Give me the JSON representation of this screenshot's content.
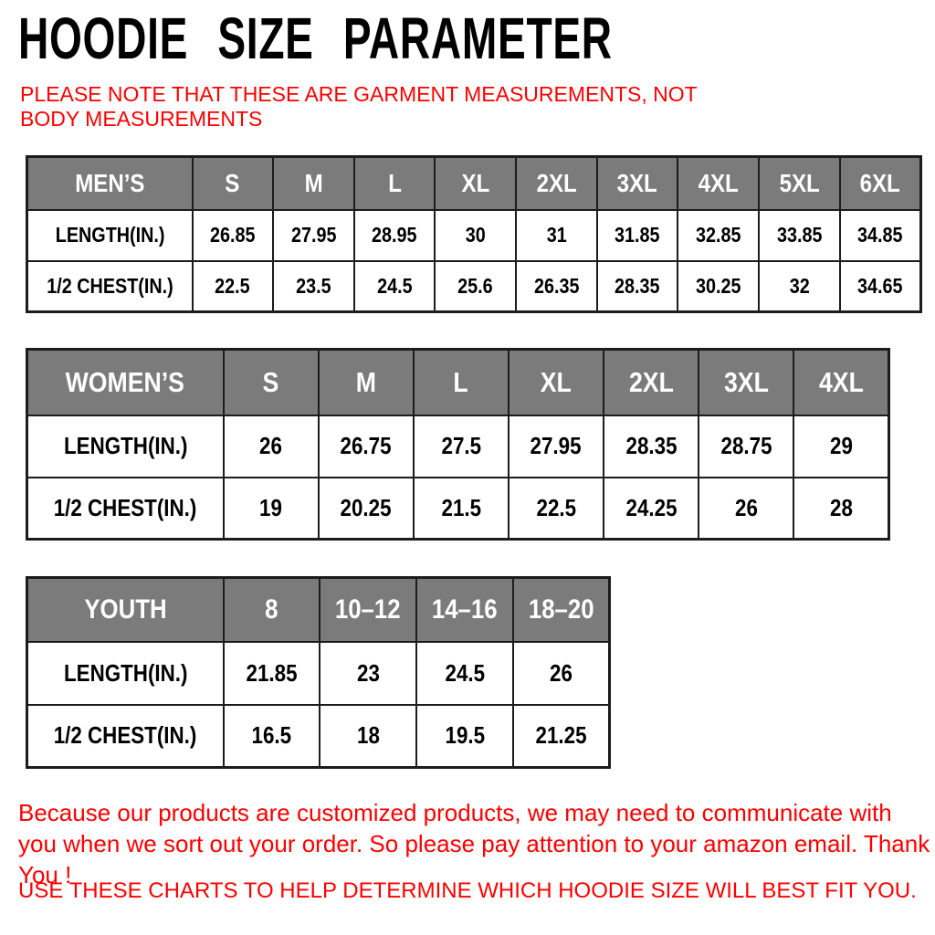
{
  "title": "HOODIE SIZE PARAMETER",
  "notes": {
    "garment": "PLEASE NOTE THAT THESE ARE GARMENT MEASUREMENTS, NOT BODY MEASUREMENTS",
    "order": "Because our products are customized products, we may need to communicate with you when we sort out your order. So please pay attention to your amazon email. Thank You !",
    "fit": "USE THESE CHARTS TO HELP DETERMINE WHICH HOODIE SIZE WILL BEST FIT YOU."
  },
  "colors": {
    "note_red": "#fe0000",
    "header_gray": "#7b7b7b",
    "border_black": "#1c1c1c",
    "header_text": "#ffffff",
    "body_text": "#000000"
  },
  "tables": [
    {
      "id": "mens",
      "label": "MEN’S",
      "sizes": [
        "S",
        "M",
        "L",
        "XL",
        "2XL",
        "3XL",
        "4XL",
        "5XL",
        "6XL"
      ],
      "rows": [
        {
          "label": "LENGTH(IN.)",
          "values": [
            "26.85",
            "27.95",
            "28.95",
            "30",
            "31",
            "31.85",
            "32.85",
            "33.85",
            "34.85"
          ]
        },
        {
          "label": "1/2 CHEST(IN.)",
          "values": [
            "22.5",
            "23.5",
            "24.5",
            "25.6",
            "26.35",
            "28.35",
            "30.25",
            "32",
            "34.65"
          ]
        }
      ]
    },
    {
      "id": "womens",
      "label": "WOMEN’S",
      "sizes": [
        "S",
        "M",
        "L",
        "XL",
        "2XL",
        "3XL",
        "4XL"
      ],
      "rows": [
        {
          "label": "LENGTH(IN.)",
          "values": [
            "26",
            "26.75",
            "27.5",
            "27.95",
            "28.35",
            "28.75",
            "29"
          ]
        },
        {
          "label": "1/2 CHEST(IN.)",
          "values": [
            "19",
            "20.25",
            "21.5",
            "22.5",
            "24.25",
            "26",
            "28"
          ]
        }
      ]
    },
    {
      "id": "youth",
      "label": "YOUTH",
      "sizes": [
        "8",
        "10–12",
        "14–16",
        "18–20"
      ],
      "rows": [
        {
          "label": "LENGTH(IN.)",
          "values": [
            "21.85",
            "23",
            "24.5",
            "26"
          ]
        },
        {
          "label": "1/2 CHEST(IN.)",
          "values": [
            "16.5",
            "18",
            "19.5",
            "21.25"
          ]
        }
      ]
    }
  ]
}
